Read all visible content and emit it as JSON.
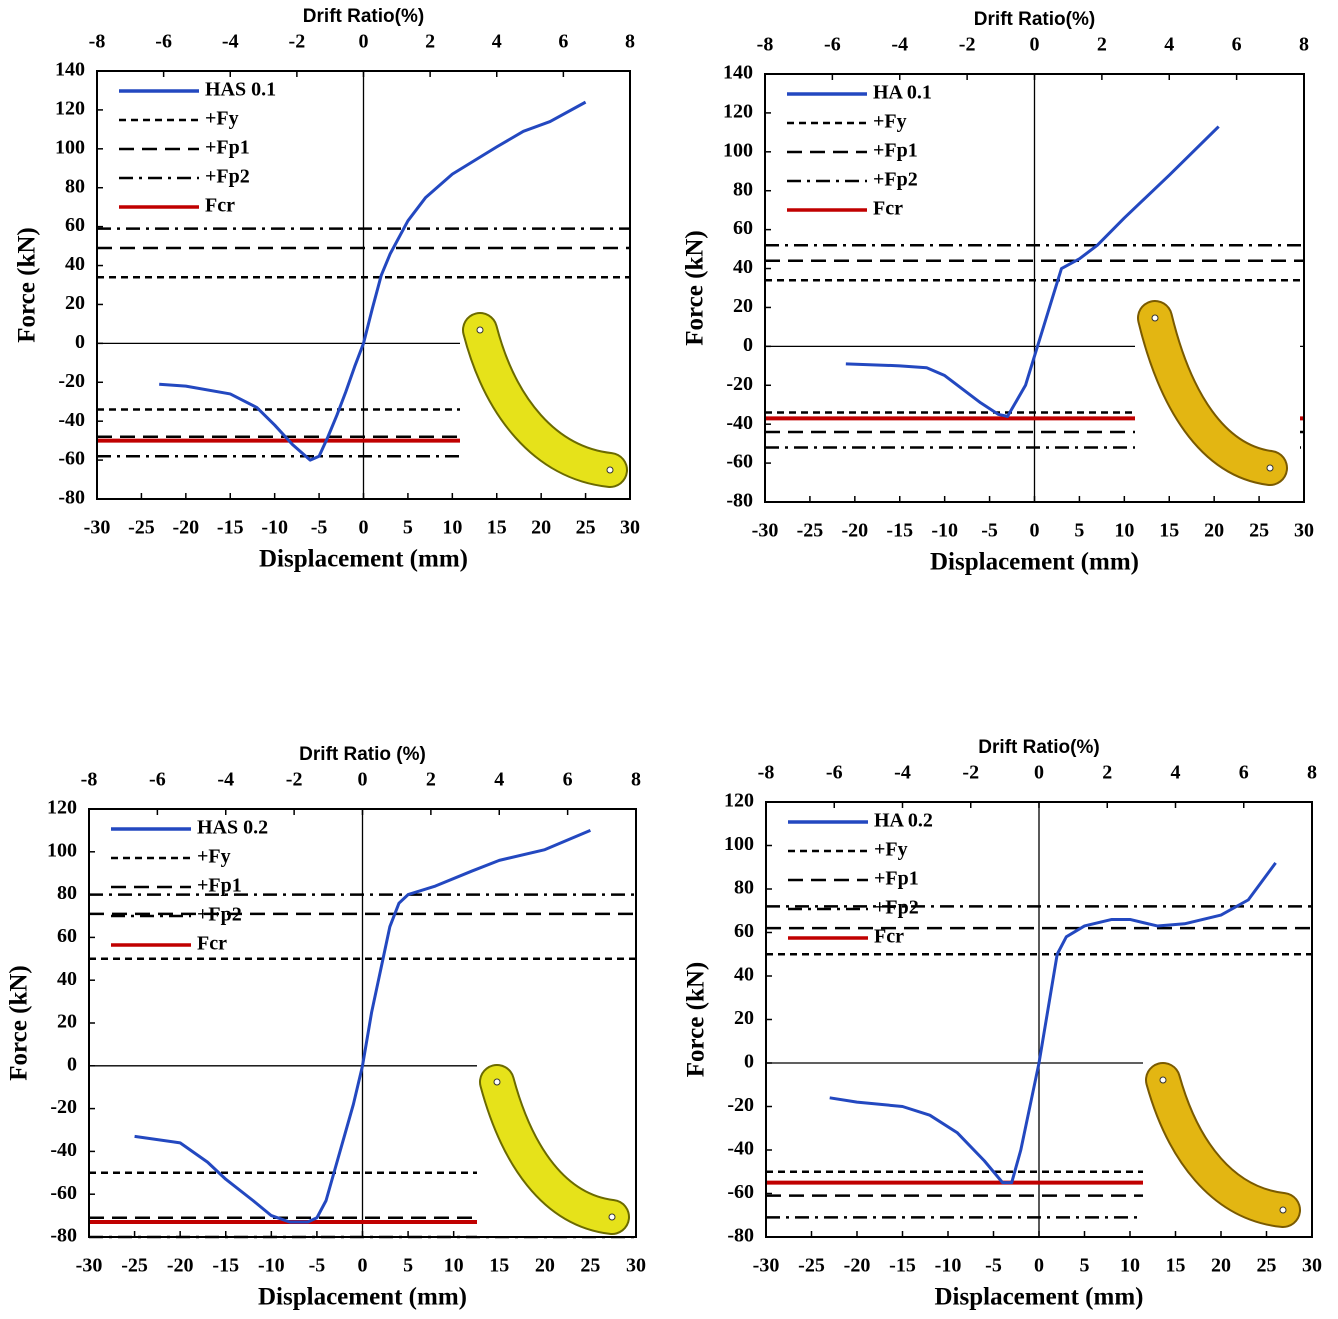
{
  "chart_data": [
    {
      "type": "line",
      "x_label": "Displacement (mm)",
      "y_label": "Force (kN)",
      "x2_label": "Drift Ratio(%)",
      "xlim": [
        -30,
        30
      ],
      "xticks": [
        -30,
        -25,
        -20,
        -15,
        -10,
        -5,
        0,
        5,
        10,
        15,
        20,
        25,
        30
      ],
      "x2lim": [
        -8,
        8
      ],
      "x2ticks": [
        -8,
        -6,
        -4,
        -2,
        0,
        2,
        4,
        6,
        8
      ],
      "ylim": [
        -80,
        140
      ],
      "yticks": [
        -80,
        -60,
        -40,
        -20,
        0,
        20,
        40,
        60,
        80,
        100,
        120,
        140
      ],
      "series": [
        {
          "name": "HAS 0.1",
          "color": "#2348c0",
          "style": "solid",
          "x": [
            -23,
            -20,
            -15,
            -12,
            -10,
            -8,
            -6,
            -5,
            -4,
            -3,
            -2,
            -1,
            0,
            1,
            2,
            3,
            5,
            7,
            10,
            15,
            18,
            21,
            25
          ],
          "values": [
            -21,
            -22,
            -26,
            -33,
            -42,
            -52,
            -60,
            -58,
            -48,
            -37,
            -25,
            -12,
            0,
            18,
            35,
            46,
            63,
            75,
            87,
            101,
            109,
            114,
            124
          ]
        },
        {
          "name": "+Fy",
          "color": "#000000",
          "style": "short-dash",
          "values": [
            34,
            -34
          ]
        },
        {
          "name": "+Fp1",
          "color": "#000000",
          "style": "long-dash",
          "values": [
            49,
            -48
          ]
        },
        {
          "name": "+Fp2",
          "color": "#000000",
          "style": "dash-dot",
          "values": [
            59,
            -58
          ]
        },
        {
          "name": "Fcr",
          "color": "#c00000",
          "style": "solid",
          "values": [
            -50
          ]
        }
      ]
    },
    {
      "type": "line",
      "x_label": "Displacement (mm)",
      "y_label": "Force (kN)",
      "x2_label": "Drift Ratio(%)",
      "xlim": [
        -30,
        30
      ],
      "xticks": [
        -30,
        -25,
        -20,
        -15,
        -10,
        -5,
        0,
        5,
        10,
        15,
        20,
        25,
        30
      ],
      "x2lim": [
        -8,
        8
      ],
      "x2ticks": [
        -8,
        -6,
        -4,
        -2,
        0,
        2,
        4,
        6,
        8
      ],
      "ylim": [
        -80,
        140
      ],
      "yticks": [
        -80,
        -60,
        -40,
        -20,
        0,
        20,
        40,
        60,
        80,
        100,
        120,
        140
      ],
      "series": [
        {
          "name": "HA 0.1",
          "color": "#2348c0",
          "style": "solid",
          "x": [
            -21,
            -15,
            -12,
            -10,
            -8,
            -6,
            -4,
            -3,
            -2,
            -1,
            0,
            1,
            2,
            3,
            5,
            7,
            10,
            15,
            20.5
          ],
          "values": [
            -9,
            -10,
            -11,
            -15,
            -22,
            -29,
            -35,
            -36,
            -28,
            -20,
            -5,
            10,
            25,
            40,
            45,
            52,
            66,
            88,
            113
          ]
        },
        {
          "name": "+Fy",
          "color": "#000000",
          "style": "short-dash",
          "values": [
            34,
            -34
          ]
        },
        {
          "name": "+Fp1",
          "color": "#000000",
          "style": "long-dash",
          "values": [
            44,
            -44
          ]
        },
        {
          "name": "+Fp2",
          "color": "#000000",
          "style": "dash-dot",
          "values": [
            52,
            -52
          ]
        },
        {
          "name": "Fcr",
          "color": "#c00000",
          "style": "solid",
          "values": [
            -37
          ]
        }
      ]
    },
    {
      "type": "line",
      "x_label": "Displacement (mm)",
      "y_label": "Force (kN)",
      "x2_label": "Drift Ratio (%)",
      "xlim": [
        -30,
        30
      ],
      "xticks": [
        -30,
        -25,
        -20,
        -15,
        -10,
        -5,
        0,
        5,
        10,
        15,
        20,
        25,
        30
      ],
      "x2lim": [
        -8,
        8
      ],
      "x2ticks": [
        -8,
        -6,
        -4,
        -2,
        0,
        2,
        4,
        6,
        8
      ],
      "ylim": [
        -80,
        120
      ],
      "yticks": [
        -80,
        -60,
        -40,
        -20,
        0,
        20,
        40,
        60,
        80,
        100,
        120
      ],
      "series": [
        {
          "name": "HAS 0.2",
          "color": "#2348c0",
          "style": "solid",
          "x": [
            -25,
            -20,
            -17,
            -15,
            -12,
            -10,
            -8,
            -6,
            -5,
            -4,
            -3,
            -2,
            -1,
            0,
            1,
            2,
            3,
            4,
            5,
            8,
            12,
            15,
            20,
            25
          ],
          "values": [
            -33,
            -36,
            -45,
            -53,
            -63,
            -70,
            -73,
            -73,
            -71,
            -63,
            -48,
            -33,
            -18,
            0,
            25,
            45,
            65,
            76,
            80,
            84,
            91,
            96,
            101,
            110
          ]
        },
        {
          "name": "+Fy",
          "color": "#000000",
          "style": "short-dash",
          "values": [
            50,
            -50
          ]
        },
        {
          "name": "+Fp1",
          "color": "#000000",
          "style": "long-dash",
          "values": [
            71,
            -71
          ]
        },
        {
          "name": "+Fp2",
          "color": "#000000",
          "style": "dash-dot",
          "values": [
            80,
            -80
          ]
        },
        {
          "name": "Fcr",
          "color": "#c00000",
          "style": "solid",
          "values": [
            -73
          ]
        }
      ]
    },
    {
      "type": "line",
      "x_label": "Displacement (mm)",
      "y_label": "Force (kN)",
      "x2_label": "Drift Ratio(%)",
      "xlim": [
        -30,
        30
      ],
      "xticks": [
        -30,
        -25,
        -20,
        -15,
        -10,
        -5,
        0,
        5,
        10,
        15,
        20,
        25,
        30
      ],
      "x2lim": [
        -8,
        8
      ],
      "x2ticks": [
        -8,
        -6,
        -4,
        -2,
        0,
        2,
        4,
        6,
        8
      ],
      "ylim": [
        -80,
        120
      ],
      "yticks": [
        -80,
        -60,
        -40,
        -20,
        0,
        20,
        40,
        60,
        80,
        100,
        120
      ],
      "series": [
        {
          "name": "HA 0.2",
          "color": "#2348c0",
          "style": "solid",
          "x": [
            -23,
            -20,
            -15,
            -12,
            -9,
            -6,
            -4,
            -3,
            -2,
            -1,
            0,
            1,
            2,
            3,
            5,
            8,
            10,
            13,
            16,
            20,
            23,
            26
          ],
          "values": [
            -16,
            -18,
            -20,
            -24,
            -32,
            -45,
            -55,
            -55,
            -40,
            -20,
            0,
            25,
            50,
            58,
            63,
            66,
            66,
            63,
            64,
            68,
            75,
            92
          ]
        },
        {
          "name": "+Fy",
          "color": "#000000",
          "style": "short-dash",
          "values": [
            50,
            -50
          ]
        },
        {
          "name": "+Fp1",
          "color": "#000000",
          "style": "long-dash",
          "values": [
            62,
            -61
          ]
        },
        {
          "name": "+Fp2",
          "color": "#000000",
          "style": "dash-dot",
          "values": [
            72,
            -71
          ]
        },
        {
          "name": "Fcr",
          "color": "#c00000",
          "style": "solid",
          "values": [
            -55
          ]
        }
      ]
    }
  ]
}
